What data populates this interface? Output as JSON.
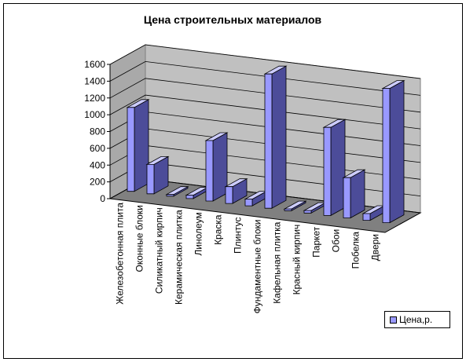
{
  "chart_data": {
    "type": "bar",
    "title": "Цена строительных материалов",
    "categories": [
      "Железобетонная плита",
      "Оконные блоки",
      "Силикатный кирпич",
      "Керамическая плитка",
      "Линолеум",
      "Краска",
      "Плинтус",
      "Фундаментные блоки",
      "Кафельная плитка",
      "Красный кирпич",
      "Паркет",
      "Обои",
      "Побелка",
      "Двери"
    ],
    "series": [
      {
        "name": "Цена,р.",
        "values": [
          1000,
          350,
          20,
          40,
          720,
          200,
          80,
          1600,
          20,
          30,
          1050,
          480,
          80,
          1600
        ],
        "color": "#9999FF"
      }
    ],
    "y_ticks": [
      "0",
      "200",
      "400",
      "600",
      "800",
      "1000",
      "1200",
      "1400",
      "1600"
    ],
    "ylim": [
      0,
      1600
    ],
    "grid": true,
    "legend_position": "bottom-right"
  }
}
